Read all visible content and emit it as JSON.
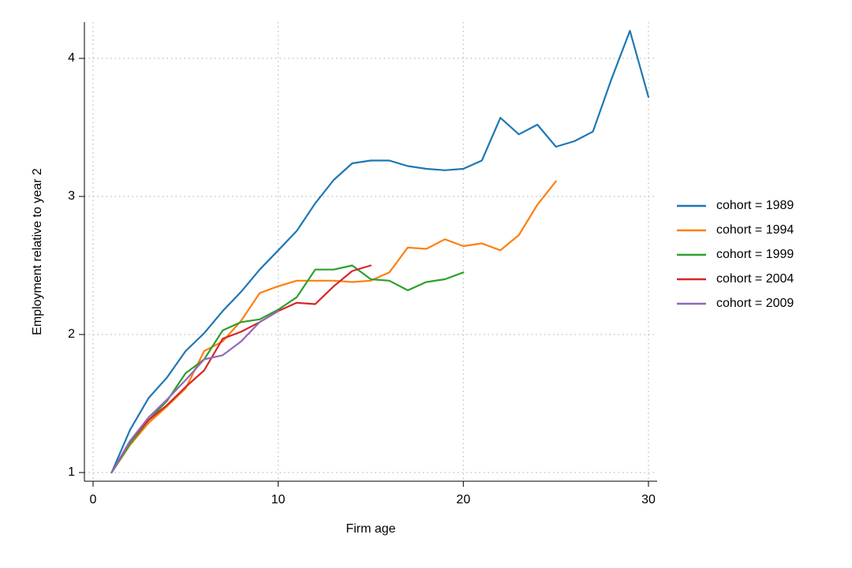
{
  "chart_data": {
    "type": "line",
    "xlabel": "Firm age",
    "ylabel": "Employment relative to year 2",
    "xlim": [
      0,
      30
    ],
    "ylim": [
      1,
      4.25
    ],
    "xticks": [
      0,
      10,
      20,
      30
    ],
    "yticks": [
      1,
      2,
      3,
      4
    ],
    "grid": true,
    "legend_position": "right",
    "series": [
      {
        "name": "cohort = 1989",
        "color": "#1f77b4",
        "x": [
          1,
          2,
          3,
          4,
          5,
          6,
          7,
          8,
          9,
          10,
          11,
          12,
          13,
          14,
          15,
          16,
          17,
          18,
          19,
          20,
          21,
          22,
          23,
          24,
          25,
          26,
          27,
          28,
          29,
          30
        ],
        "y": [
          1.0,
          1.31,
          1.54,
          1.69,
          1.88,
          2.01,
          2.17,
          2.31,
          2.47,
          2.61,
          2.75,
          2.95,
          3.12,
          3.24,
          3.26,
          3.26,
          3.22,
          3.2,
          3.19,
          3.2,
          3.26,
          3.57,
          3.45,
          3.52,
          3.36,
          3.4,
          3.47,
          3.85,
          4.2,
          3.72
        ]
      },
      {
        "name": "cohort = 1994",
        "color": "#ff7f0e",
        "x": [
          1,
          2,
          3,
          4,
          5,
          6,
          7,
          8,
          9,
          10,
          11,
          12,
          13,
          14,
          15,
          16,
          17,
          18,
          19,
          20,
          21,
          22,
          23,
          24,
          25
        ],
        "y": [
          1.0,
          1.2,
          1.36,
          1.48,
          1.61,
          1.88,
          1.95,
          2.1,
          2.3,
          2.35,
          2.39,
          2.39,
          2.39,
          2.38,
          2.39,
          2.45,
          2.63,
          2.62,
          2.69,
          2.64,
          2.66,
          2.61,
          2.72,
          2.94,
          3.11
        ]
      },
      {
        "name": "cohort = 1999",
        "color": "#2ca02c",
        "x": [
          1,
          2,
          3,
          4,
          5,
          6,
          7,
          8,
          9,
          10,
          11,
          12,
          13,
          14,
          15,
          16,
          17,
          18,
          19,
          20
        ],
        "y": [
          1.0,
          1.21,
          1.38,
          1.52,
          1.72,
          1.82,
          2.03,
          2.09,
          2.11,
          2.18,
          2.27,
          2.47,
          2.47,
          2.5,
          2.4,
          2.39,
          2.32,
          2.38,
          2.4,
          2.45
        ]
      },
      {
        "name": "cohort = 2004",
        "color": "#d62728",
        "x": [
          1,
          2,
          3,
          4,
          5,
          6,
          7,
          8,
          9,
          10,
          11,
          12,
          13,
          14,
          15
        ],
        "y": [
          1.0,
          1.23,
          1.38,
          1.49,
          1.62,
          1.74,
          1.97,
          2.02,
          2.09,
          2.17,
          2.23,
          2.22,
          2.35,
          2.46,
          2.5
        ]
      },
      {
        "name": "cohort = 2009",
        "color": "#9467bd",
        "x": [
          1,
          2,
          3,
          4,
          5,
          6,
          7,
          8,
          9,
          10
        ],
        "y": [
          1.0,
          1.23,
          1.4,
          1.53,
          1.67,
          1.82,
          1.85,
          1.95,
          2.09,
          2.17
        ]
      }
    ]
  }
}
